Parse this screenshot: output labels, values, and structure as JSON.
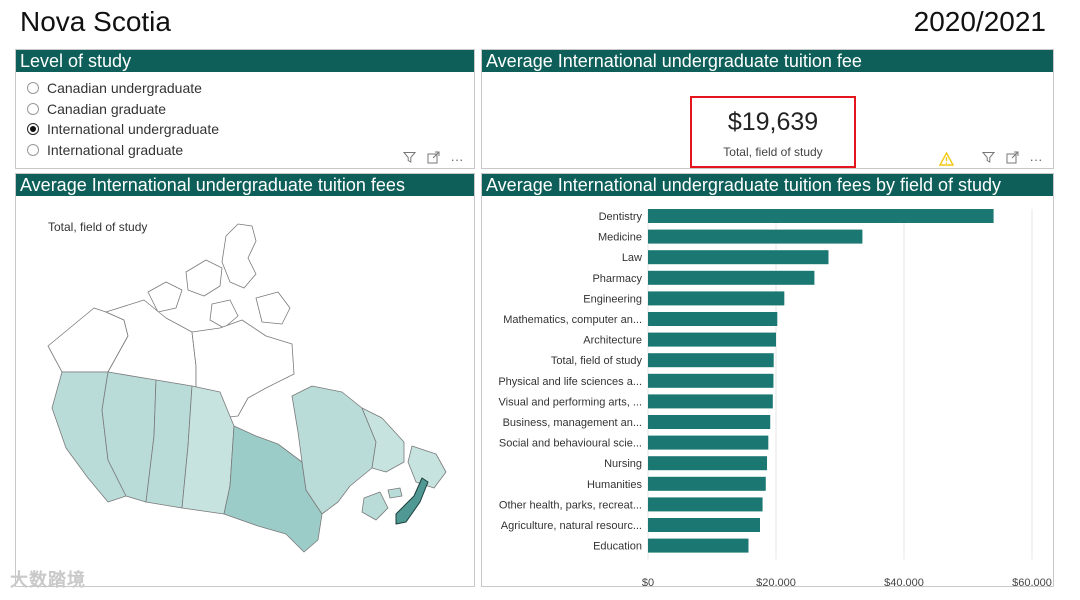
{
  "header": {
    "title": "Nova Scotia",
    "year": "2020/2021"
  },
  "level_panel": {
    "title": "Level of study",
    "options": [
      {
        "label": "Canadian undergraduate",
        "selected": false
      },
      {
        "label": "Canadian graduate",
        "selected": false
      },
      {
        "label": "International undergraduate",
        "selected": true
      },
      {
        "label": "International graduate",
        "selected": false
      }
    ]
  },
  "kpi_panel": {
    "title": "Average International undergraduate tuition fee",
    "value": "$19,639",
    "subtitle": "Total, field of study"
  },
  "map_panel": {
    "title": "Average International undergraduate tuition fees",
    "label": "Total, field of study",
    "colors": {
      "low": "#b9dcd9",
      "mid": "#9cccc7",
      "high": "#4f9893",
      "none": "#ffffff"
    }
  },
  "bar_panel": {
    "title": "Average International undergraduate tuition fees by field of study"
  },
  "icons": {
    "filter": "filter-icon",
    "focus": "focus-mode-icon",
    "more": "more-options-icon",
    "warning": "warning-icon"
  },
  "watermark": "大数踏境",
  "colors": {
    "header_bg": "#0e5f59",
    "bar": "#1a7772",
    "highlight_border": "#e4151c"
  },
  "chart_data": {
    "type": "bar",
    "orientation": "horizontal",
    "categories": [
      "Dentistry",
      "Medicine",
      "Law",
      "Pharmacy",
      "Engineering",
      "Mathematics, computer an...",
      "Architecture",
      "Total, field of study",
      "Physical and life sciences a...",
      "Visual and performing arts, ...",
      "Business, management an...",
      "Social and behavioural scie...",
      "Nursing",
      "Humanities",
      "Other health, parks, recreat...",
      "Agriculture, natural resourc...",
      "Education"
    ],
    "values": [
      54000,
      33500,
      28200,
      26000,
      21300,
      20200,
      20000,
      19639,
      19600,
      19500,
      19100,
      18800,
      18600,
      18400,
      17900,
      17500,
      15700
    ],
    "xlim": [
      0,
      60000
    ],
    "xticks": [
      "$0",
      "$20,000",
      "$40,000",
      "$60,000"
    ],
    "xtick_values": [
      0,
      20000,
      40000,
      60000
    ],
    "grid": true
  }
}
